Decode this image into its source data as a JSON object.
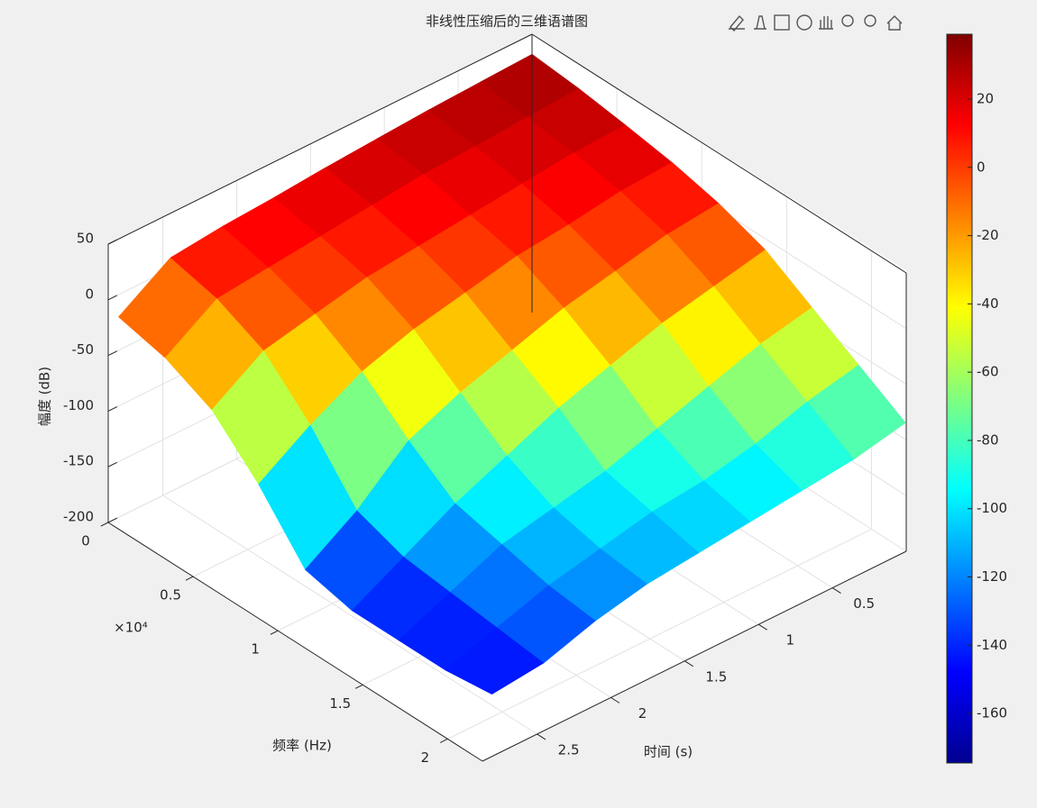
{
  "chart_data": {
    "type": "surface",
    "title": "非线性压缩后的三维语谱图",
    "xlabel": "时间 (s)",
    "ylabel": "频率 (Hz)",
    "zlabel": "幅度 (dB)",
    "y_exponent": "×10⁴",
    "x": [
      0,
      0.35,
      0.7,
      1.05,
      1.4,
      1.75,
      2.1,
      2.45,
      2.8
    ],
    "y": [
      0,
      2750,
      5500,
      8250,
      11000,
      13750,
      16500,
      19250,
      22000
    ],
    "z": [
      [
        32,
        28,
        22,
        15,
        5,
        -10,
        -35,
        -60,
        -85
      ],
      [
        30,
        25,
        20,
        12,
        0,
        -20,
        -45,
        -70,
        -95
      ],
      [
        28,
        22,
        15,
        5,
        -10,
        -30,
        -60,
        -85,
        -100
      ],
      [
        25,
        20,
        10,
        0,
        -20,
        -45,
        -75,
        -95,
        -105
      ],
      [
        22,
        15,
        5,
        -10,
        -35,
        -60,
        -90,
        -100,
        -110
      ],
      [
        18,
        10,
        0,
        -20,
        -50,
        -80,
        -100,
        -110,
        -115
      ],
      [
        15,
        5,
        -10,
        -35,
        -70,
        -100,
        -110,
        -120,
        -125
      ],
      [
        10,
        0,
        -20,
        -60,
        -110,
        -125,
        -130,
        -135,
        -140
      ],
      [
        -20,
        -30,
        -50,
        -90,
        -140,
        -150,
        -150,
        -150,
        -145
      ]
    ],
    "xlim": [
      0,
      2.87
    ],
    "ylim": [
      0,
      22050
    ],
    "zlim": [
      -200,
      50
    ],
    "xticks": [
      0.5,
      1,
      1.5,
      2,
      2.5
    ],
    "yticks": [
      0,
      {
        "value": 5000,
        "label": "0.5"
      },
      {
        "value": 10000,
        "label": "1"
      },
      {
        "value": 15000,
        "label": "1.5"
      },
      {
        "value": 20000,
        "label": "2"
      }
    ],
    "zticks": [
      -200,
      -150,
      -100,
      -50,
      0,
      50
    ],
    "colormap": "jet",
    "clim": [
      -174.5,
      39
    ],
    "colorbar_ticks": [
      -160,
      -140,
      -120,
      -100,
      -80,
      -60,
      -40,
      -20,
      0,
      20
    ],
    "grid": true
  }
}
